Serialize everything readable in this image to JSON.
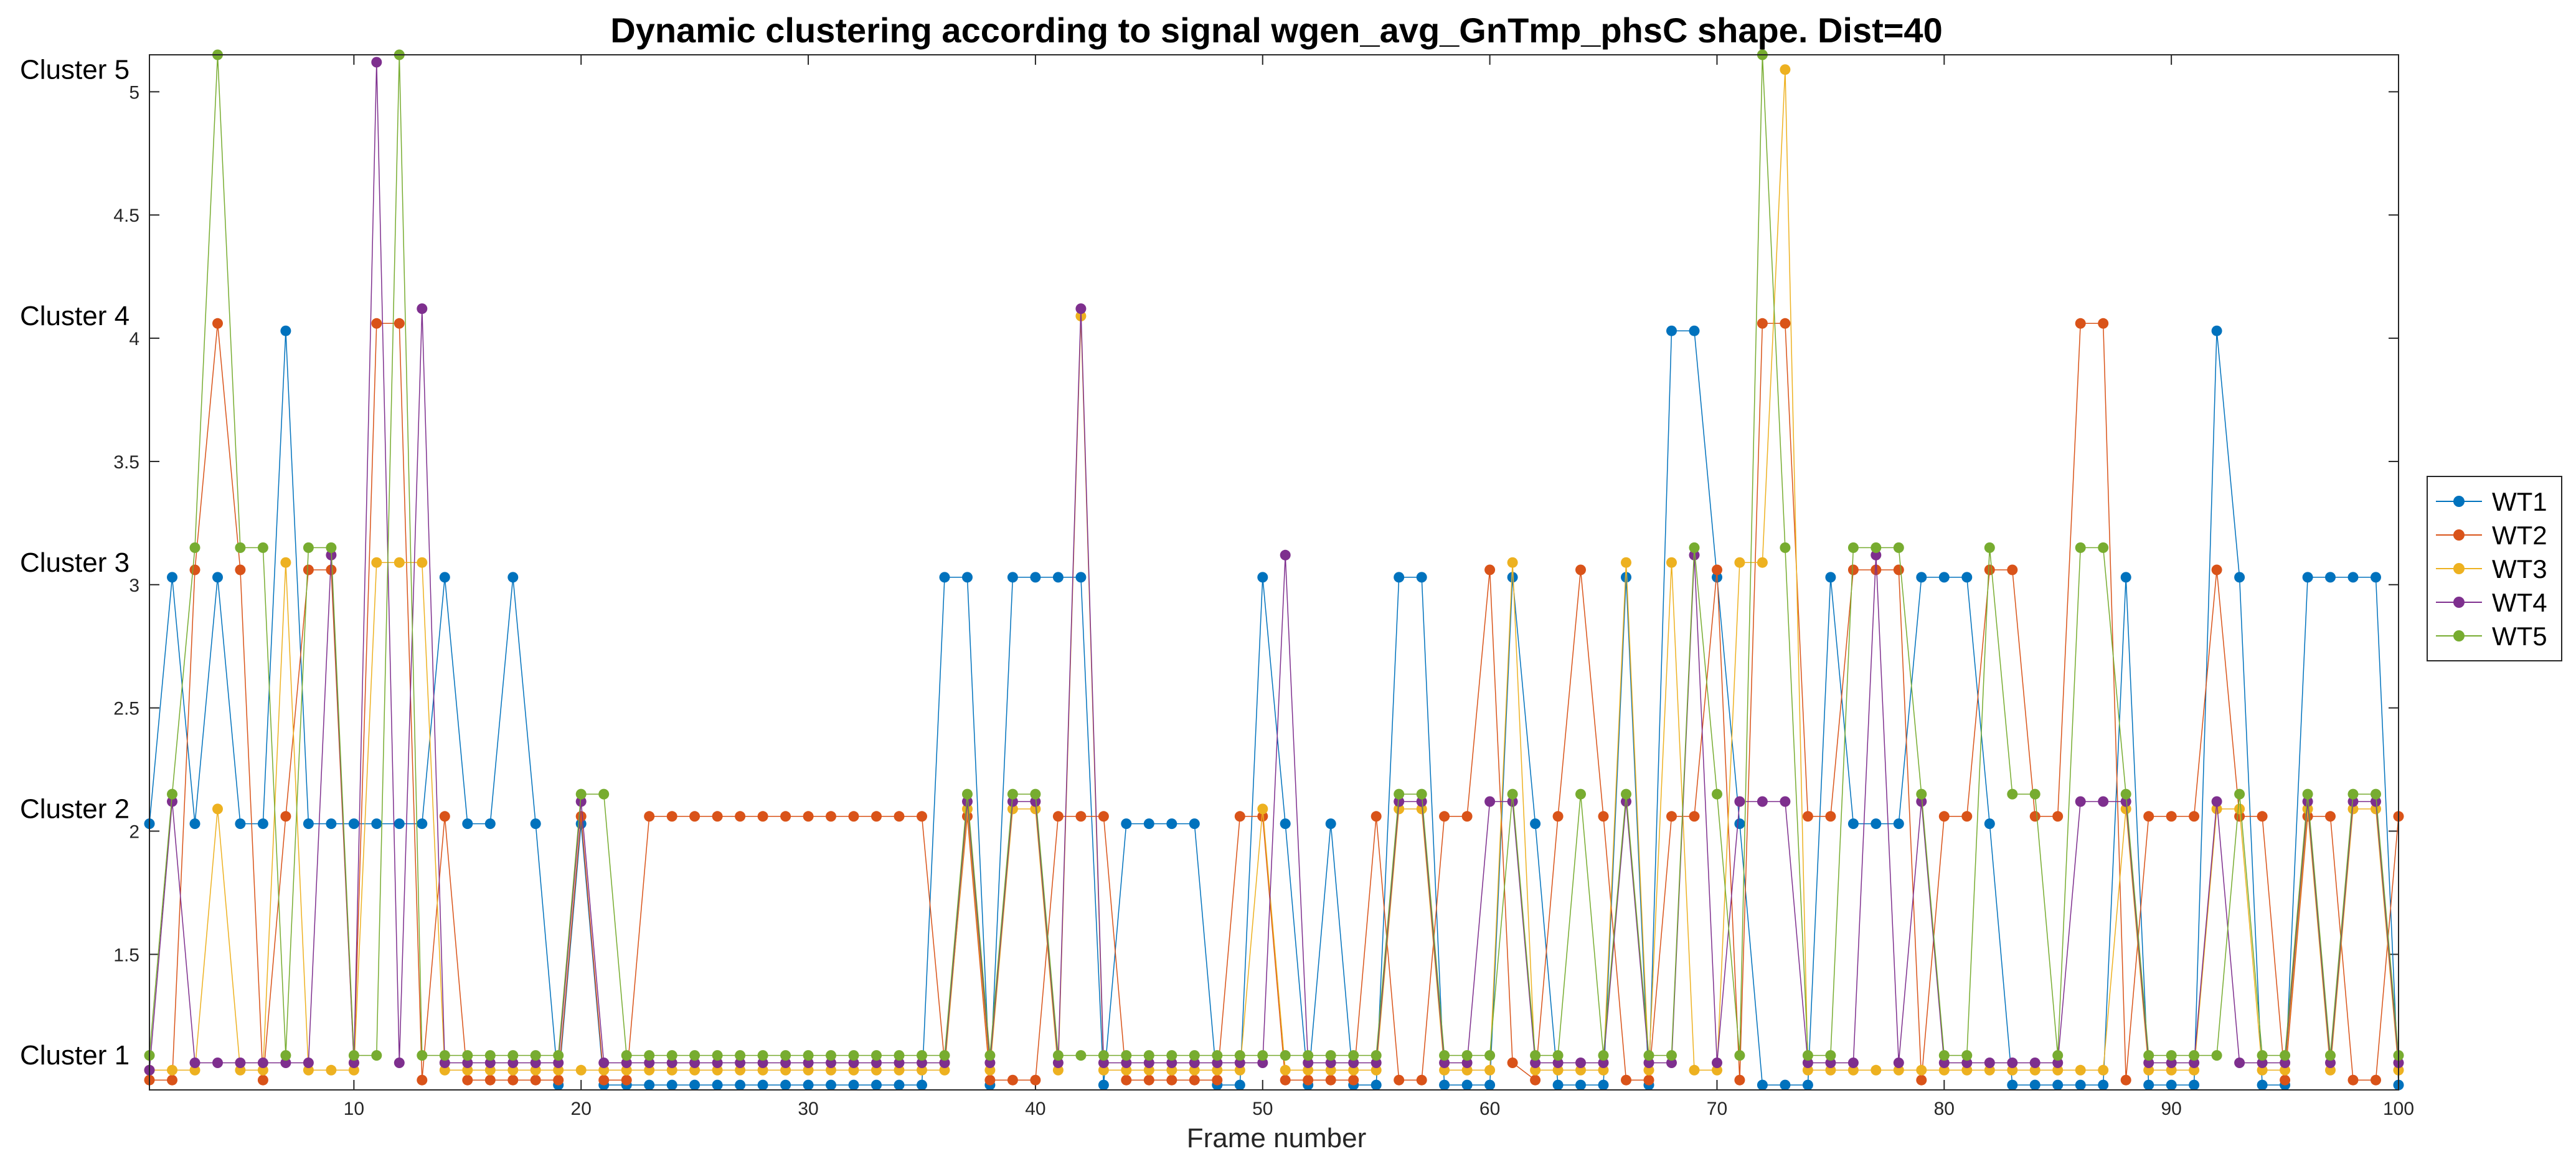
{
  "chart_data": {
    "type": "line",
    "title": "Dynamic clustering according to signal wgen_avg_GnTmp_phsC shape. Dist=40",
    "xlabel": "Frame number",
    "ylabel": "",
    "xlim": [
      1,
      100
    ],
    "ylim": [
      0.95,
      5.15
    ],
    "x_ticks": [
      10,
      20,
      30,
      40,
      50,
      60,
      70,
      80,
      90,
      100
    ],
    "y_ticks": [
      1.5,
      2,
      2.5,
      3,
      3.5,
      4,
      4.5,
      5
    ],
    "cluster_labels": [
      {
        "text": "Cluster 1",
        "y": 1
      },
      {
        "text": "Cluster 2",
        "y": 2
      },
      {
        "text": "Cluster 3",
        "y": 3
      },
      {
        "text": "Cluster 4",
        "y": 4
      },
      {
        "text": "Cluster 5",
        "y": 5
      }
    ],
    "legend_position": "right",
    "series": [
      {
        "name": "WT1",
        "color": "#0072BD",
        "values": [
          2.03,
          3.03,
          2.03,
          3.03,
          2.03,
          2.03,
          4.03,
          2.03,
          2.03,
          2.03,
          2.03,
          2.03,
          2.03,
          3.03,
          2.03,
          2.03,
          3.03,
          2.03,
          0.97,
          2.03,
          0.97,
          0.97,
          0.97,
          0.97,
          0.97,
          0.97,
          0.97,
          0.97,
          0.97,
          0.97,
          0.97,
          0.97,
          0.97,
          0.97,
          0.97,
          3.03,
          3.03,
          0.97,
          3.03,
          3.03,
          3.03,
          3.03,
          0.97,
          2.03,
          2.03,
          2.03,
          2.03,
          0.97,
          0.97,
          3.03,
          2.03,
          0.97,
          2.03,
          0.97,
          0.97,
          3.03,
          3.03,
          0.97,
          0.97,
          0.97,
          3.03,
          2.03,
          0.97,
          0.97,
          0.97,
          3.03,
          0.97,
          4.03,
          4.03,
          3.03,
          2.03,
          0.97,
          0.97,
          0.97,
          3.03,
          2.03,
          2.03,
          2.03,
          3.03,
          3.03,
          3.03,
          2.03,
          0.97,
          0.97,
          0.97,
          0.97,
          0.97,
          3.03,
          0.97,
          0.97,
          0.97,
          4.03,
          3.03,
          0.97,
          0.97,
          3.03,
          3.03,
          3.03,
          3.03,
          0.97
        ]
      },
      {
        "name": "WT2",
        "color": "#D95319",
        "values": [
          0.99,
          0.99,
          3.06,
          4.06,
          3.06,
          0.99,
          2.06,
          3.06,
          3.06,
          1.06,
          4.06,
          4.06,
          0.99,
          2.06,
          0.99,
          0.99,
          0.99,
          0.99,
          0.99,
          2.06,
          0.99,
          0.99,
          2.06,
          2.06,
          2.06,
          2.06,
          2.06,
          2.06,
          2.06,
          2.06,
          2.06,
          2.06,
          2.06,
          2.06,
          2.06,
          1.06,
          2.06,
          0.99,
          0.99,
          0.99,
          2.06,
          2.06,
          2.06,
          0.99,
          0.99,
          0.99,
          0.99,
          0.99,
          2.06,
          2.06,
          0.99,
          0.99,
          0.99,
          0.99,
          2.06,
          0.99,
          0.99,
          2.06,
          2.06,
          3.06,
          1.06,
          0.99,
          2.06,
          3.06,
          2.06,
          0.99,
          0.99,
          2.06,
          2.06,
          3.06,
          0.99,
          4.06,
          4.06,
          2.06,
          2.06,
          3.06,
          3.06,
          3.06,
          0.99,
          2.06,
          2.06,
          3.06,
          3.06,
          2.06,
          2.06,
          4.06,
          4.06,
          0.99,
          2.06,
          2.06,
          2.06,
          3.06,
          2.06,
          2.06,
          0.99,
          2.06,
          2.06,
          0.99,
          0.99,
          2.06
        ]
      },
      {
        "name": "WT3",
        "color": "#EDB120",
        "values": [
          1.03,
          1.03,
          1.03,
          2.09,
          1.03,
          1.03,
          3.09,
          1.03,
          1.03,
          1.03,
          3.09,
          3.09,
          3.09,
          1.03,
          1.03,
          1.03,
          1.03,
          1.03,
          1.03,
          1.03,
          1.03,
          1.03,
          1.03,
          1.03,
          1.03,
          1.03,
          1.03,
          1.03,
          1.03,
          1.03,
          1.03,
          1.03,
          1.03,
          1.03,
          1.03,
          1.03,
          2.09,
          1.03,
          2.09,
          2.09,
          1.03,
          4.09,
          1.03,
          1.03,
          1.03,
          1.03,
          1.03,
          1.03,
          1.03,
          2.09,
          1.03,
          1.03,
          1.03,
          1.03,
          1.03,
          2.09,
          2.09,
          1.03,
          1.03,
          1.03,
          3.09,
          1.03,
          1.03,
          1.03,
          1.03,
          3.09,
          1.03,
          3.09,
          1.03,
          1.03,
          3.09,
          3.09,
          5.09,
          1.03,
          1.03,
          1.03,
          1.03,
          1.03,
          1.03,
          1.03,
          1.03,
          1.03,
          1.03,
          1.03,
          1.03,
          1.03,
          1.03,
          2.09,
          1.03,
          1.03,
          1.03,
          2.09,
          2.09,
          1.03,
          1.03,
          2.09,
          1.03,
          2.09,
          2.09,
          1.03
        ]
      },
      {
        "name": "WT4",
        "color": "#7E2F8E",
        "values": [
          1.03,
          2.12,
          1.06,
          1.06,
          1.06,
          1.06,
          1.06,
          1.06,
          3.12,
          1.06,
          5.12,
          1.06,
          4.12,
          1.06,
          1.06,
          1.06,
          1.06,
          1.06,
          1.06,
          2.12,
          1.06,
          1.06,
          1.06,
          1.06,
          1.06,
          1.06,
          1.06,
          1.06,
          1.06,
          1.06,
          1.06,
          1.06,
          1.06,
          1.06,
          1.06,
          1.06,
          2.12,
          1.06,
          2.12,
          2.12,
          1.06,
          4.12,
          1.06,
          1.06,
          1.06,
          1.06,
          1.06,
          1.06,
          1.06,
          1.06,
          3.12,
          1.06,
          1.06,
          1.06,
          1.06,
          2.12,
          2.12,
          1.06,
          1.06,
          2.12,
          2.12,
          1.06,
          1.06,
          1.06,
          1.06,
          2.12,
          1.06,
          1.06,
          3.12,
          1.06,
          2.12,
          2.12,
          2.12,
          1.06,
          1.06,
          1.06,
          3.12,
          1.06,
          2.12,
          1.06,
          1.06,
          1.06,
          1.06,
          1.06,
          1.06,
          2.12,
          2.12,
          2.12,
          1.06,
          1.06,
          1.06,
          2.12,
          1.06,
          1.06,
          1.06,
          2.12,
          1.06,
          2.12,
          2.12,
          1.06
        ]
      },
      {
        "name": "WT5",
        "color": "#77AC30",
        "values": [
          1.09,
          2.15,
          3.15,
          5.15,
          3.15,
          3.15,
          1.09,
          3.15,
          3.15,
          1.09,
          1.09,
          5.15,
          1.09,
          1.09,
          1.09,
          1.09,
          1.09,
          1.09,
          1.09,
          2.15,
          2.15,
          1.09,
          1.09,
          1.09,
          1.09,
          1.09,
          1.09,
          1.09,
          1.09,
          1.09,
          1.09,
          1.09,
          1.09,
          1.09,
          1.09,
          1.09,
          2.15,
          1.09,
          2.15,
          2.15,
          1.09,
          1.09,
          1.09,
          1.09,
          1.09,
          1.09,
          1.09,
          1.09,
          1.09,
          1.09,
          1.09,
          1.09,
          1.09,
          1.09,
          1.09,
          2.15,
          2.15,
          1.09,
          1.09,
          1.09,
          2.15,
          1.09,
          1.09,
          2.15,
          1.09,
          2.15,
          1.09,
          1.09,
          3.15,
          2.15,
          1.09,
          5.15,
          3.15,
          1.09,
          1.09,
          3.15,
          3.15,
          3.15,
          2.15,
          1.09,
          1.09,
          3.15,
          2.15,
          2.15,
          1.09,
          3.15,
          3.15,
          2.15,
          1.09,
          1.09,
          1.09,
          1.09,
          2.15,
          1.09,
          1.09,
          2.15,
          1.09,
          2.15,
          2.15,
          1.09
        ]
      }
    ]
  }
}
